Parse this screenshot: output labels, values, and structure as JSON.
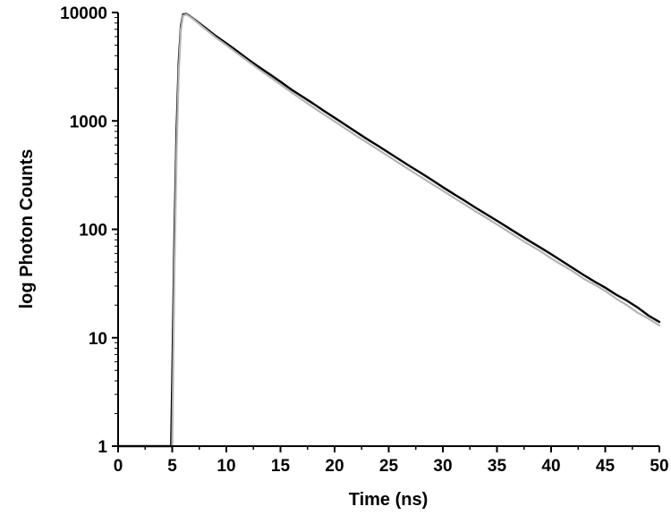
{
  "chart_data": {
    "type": "line",
    "title": "",
    "xlabel": "Time (ns)",
    "ylabel": "log Photon Counts",
    "xlim": [
      0,
      50
    ],
    "ylim": [
      1,
      10000
    ],
    "y_scale": "log",
    "grid": false,
    "x_ticks": [
      0,
      5,
      10,
      15,
      20,
      25,
      30,
      35,
      40,
      45,
      50
    ],
    "x_tick_labels": [
      "0",
      "5",
      "10",
      "15",
      "20",
      "25",
      "30",
      "35",
      "40",
      "45",
      "50"
    ],
    "y_ticks": [
      1,
      10,
      100,
      1000,
      10000
    ],
    "y_tick_labels": [
      "1",
      "10",
      "100",
      "1000",
      "10000"
    ],
    "series": [
      {
        "color": "#000000",
        "x": [
          0,
          1,
          2,
          3,
          4,
          4.9,
          5.0,
          5.2,
          5.4,
          5.6,
          5.8,
          6.0,
          6.3,
          6.6,
          7,
          8,
          9,
          10,
          11,
          12,
          13,
          14,
          15,
          16,
          17,
          18,
          19,
          20,
          21,
          22,
          23,
          24,
          25,
          26,
          27,
          28,
          29,
          30,
          31,
          32,
          33,
          34,
          35,
          36,
          37,
          38,
          39,
          40,
          41,
          42,
          43,
          44,
          45,
          46,
          47,
          48,
          49,
          50
        ],
        "y": [
          1,
          1,
          1,
          1,
          1,
          1,
          4,
          80,
          800,
          3500,
          7500,
          9600,
          9700,
          9300,
          8700,
          7300,
          6100,
          5200,
          4400,
          3700,
          3150,
          2700,
          2300,
          1950,
          1680,
          1450,
          1240,
          1070,
          920,
          790,
          680,
          590,
          510,
          440,
          380,
          330,
          285,
          245,
          212,
          184,
          159,
          138,
          120,
          104,
          90,
          78,
          68,
          59,
          51,
          44,
          38,
          33,
          29,
          25,
          22,
          19,
          16,
          14
        ]
      },
      {
        "color": "#b4b4b4",
        "x": [
          0,
          1,
          2,
          3,
          4,
          4.9,
          5.0,
          5.2,
          5.4,
          5.6,
          5.8,
          6.0,
          6.3,
          6.6,
          7,
          8,
          9,
          10,
          11,
          12,
          13,
          14,
          15,
          16,
          17,
          18,
          19,
          20,
          21,
          22,
          23,
          24,
          25,
          26,
          27,
          28,
          29,
          30,
          31,
          32,
          33,
          34,
          35,
          36,
          37,
          38,
          39,
          40,
          41,
          42,
          43,
          44,
          45,
          46,
          47,
          48,
          49,
          50
        ],
        "y": [
          1,
          1,
          1,
          1,
          1,
          1,
          1,
          40,
          500,
          2800,
          7000,
          9400,
          9600,
          9200,
          8600,
          7100,
          5900,
          5000,
          4200,
          3550,
          3000,
          2550,
          2170,
          1840,
          1570,
          1340,
          1150,
          990,
          850,
          730,
          630,
          545,
          470,
          405,
          350,
          303,
          262,
          227,
          196,
          170,
          147,
          128,
          111,
          96,
          83,
          72,
          63,
          54,
          47,
          41,
          35,
          31,
          27,
          23,
          20,
          17,
          15,
          13
        ]
      }
    ]
  }
}
